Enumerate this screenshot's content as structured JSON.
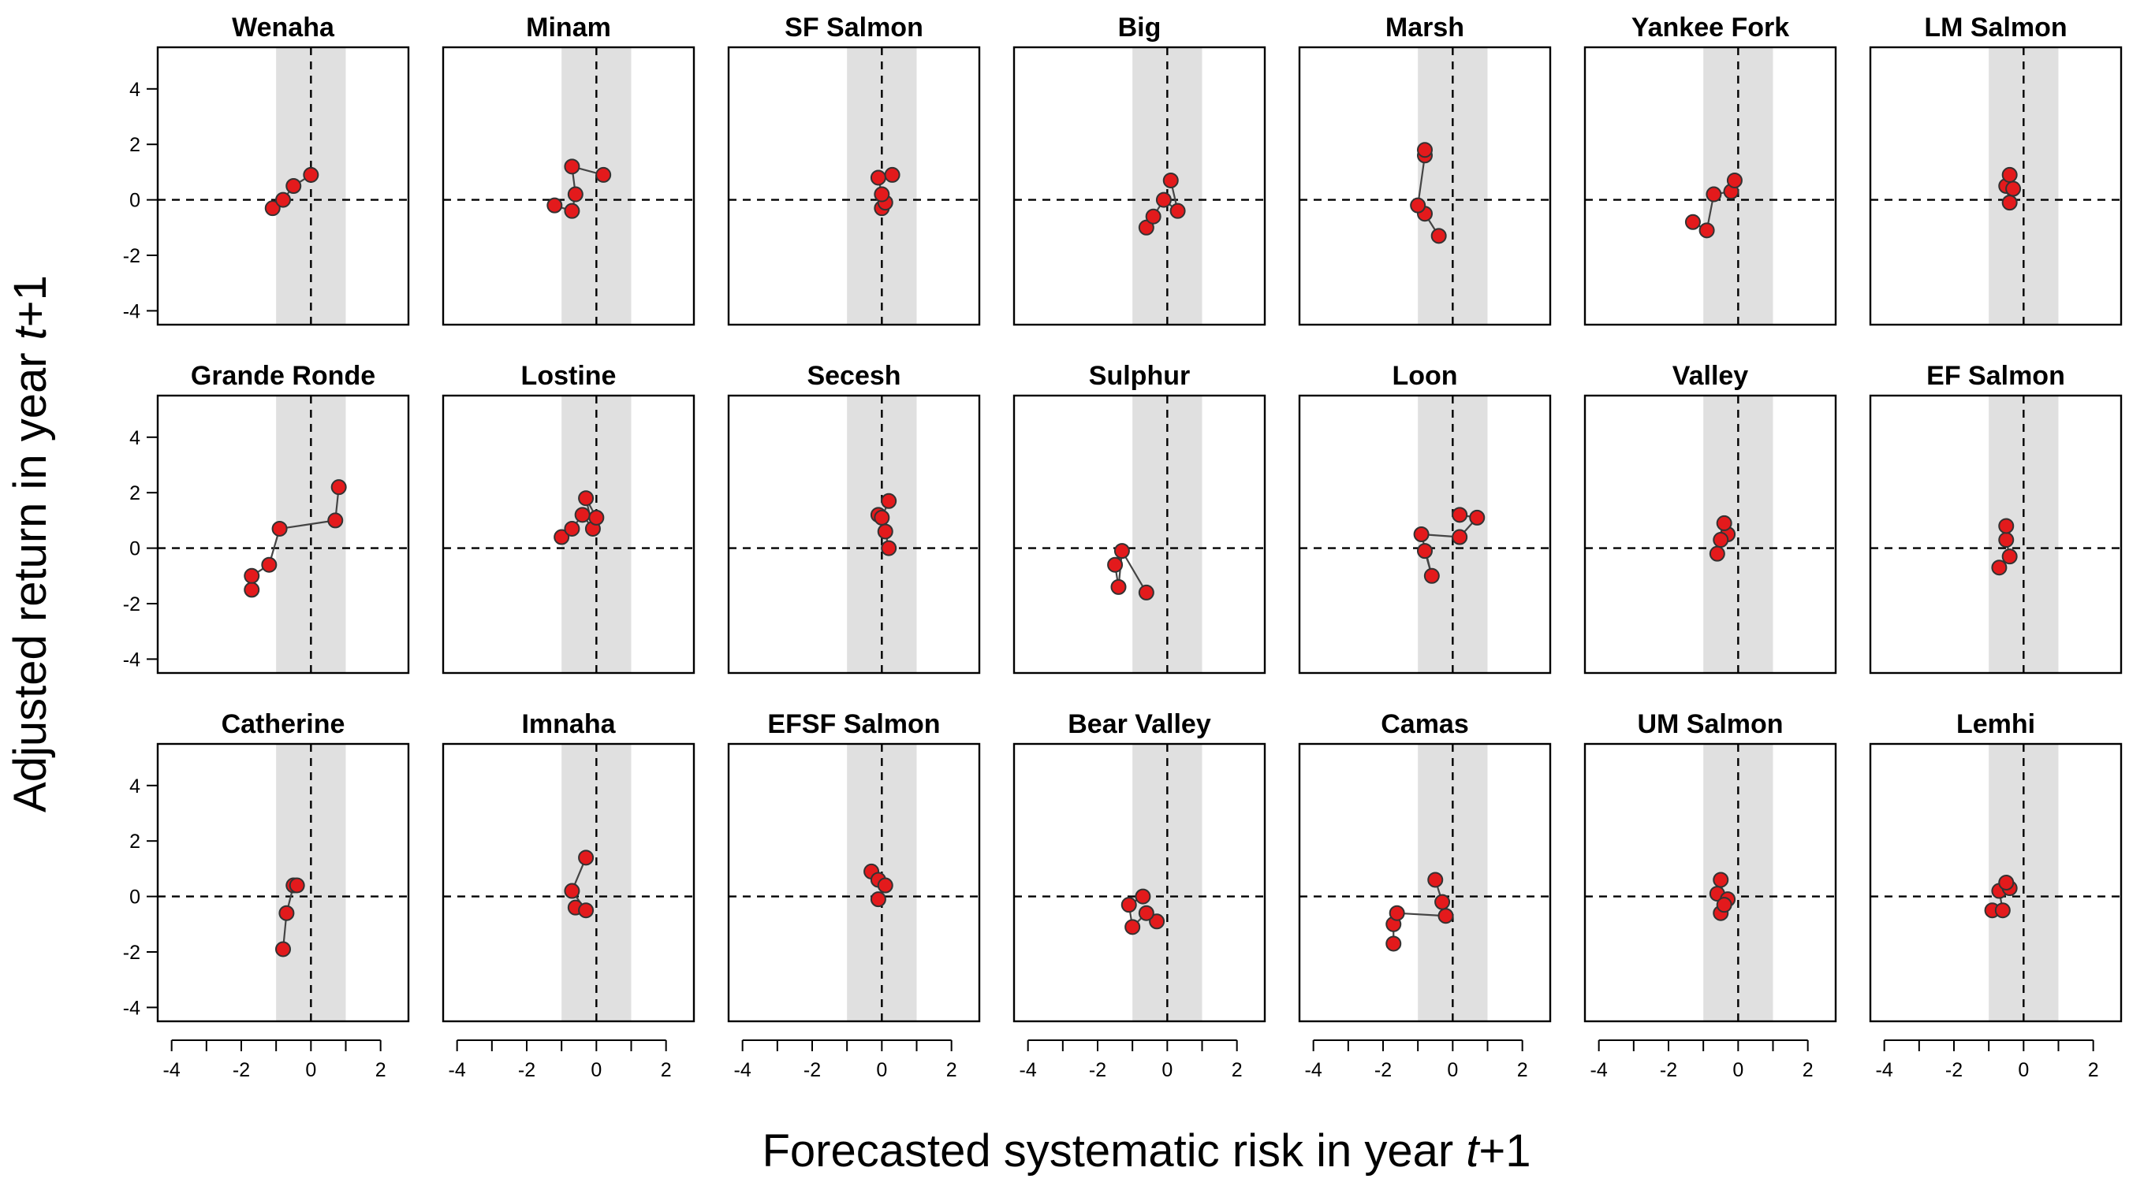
{
  "chart_data": {
    "type": "scatter",
    "xlabel": "Forecasted systematic risk in year t+1",
    "ylabel": "Adjusted return in year t+1",
    "xlim": [
      -4,
      2
    ],
    "ylim": [
      -4,
      4
    ],
    "x_ticks": [
      -4,
      -2,
      0,
      2
    ],
    "y_ticks": [
      -4,
      -2,
      0,
      2,
      4
    ],
    "shaded_x_band": [
      -1,
      1
    ],
    "reference_lines": {
      "x": 0,
      "y": 0
    },
    "grid": false,
    "point_color": "#e31a1c",
    "band_color": "#e0e0e0",
    "arrow_color": "#444444",
    "panels": [
      {
        "name": "Wenaha",
        "x": [
          -1.1,
          -0.8,
          -0.5,
          0.0
        ],
        "y": [
          -0.3,
          0.0,
          0.5,
          0.9
        ]
      },
      {
        "name": "Minam",
        "x": [
          -1.2,
          -0.7,
          -0.6,
          -0.7,
          0.2
        ],
        "y": [
          -0.2,
          -0.4,
          0.2,
          1.2,
          0.9
        ]
      },
      {
        "name": "SF Salmon",
        "x": [
          0.0,
          0.1,
          0.0,
          -0.1,
          0.3
        ],
        "y": [
          -0.3,
          -0.1,
          0.2,
          0.8,
          0.9
        ]
      },
      {
        "name": "Big",
        "x": [
          -0.6,
          -0.4,
          -0.1,
          0.3,
          0.1
        ],
        "y": [
          -1.0,
          -0.6,
          0.0,
          -0.4,
          0.7
        ]
      },
      {
        "name": "Marsh",
        "x": [
          -0.4,
          -0.8,
          -1.0,
          -0.8,
          -0.8
        ],
        "y": [
          -1.3,
          -0.5,
          -0.2,
          1.6,
          1.8
        ]
      },
      {
        "name": "Yankee Fork",
        "x": [
          -1.3,
          -0.9,
          -0.7,
          -0.2,
          -0.1
        ],
        "y": [
          -0.8,
          -1.1,
          0.2,
          0.3,
          0.7
        ]
      },
      {
        "name": "LM Salmon",
        "x": [
          -0.4,
          -0.5,
          -0.3,
          -0.4
        ],
        "y": [
          -0.1,
          0.5,
          0.4,
          0.9
        ]
      },
      {
        "name": "Grande Ronde",
        "x": [
          -1.7,
          -1.7,
          -1.2,
          -0.9,
          0.7,
          0.8
        ],
        "y": [
          -1.5,
          -1.0,
          -0.6,
          0.7,
          1.0,
          2.2
        ]
      },
      {
        "name": "Lostine",
        "x": [
          -1.0,
          -0.7,
          -0.4,
          -0.1,
          -0.3,
          0.0
        ],
        "y": [
          0.4,
          0.7,
          1.2,
          0.7,
          1.8,
          1.1
        ]
      },
      {
        "name": "Secesh",
        "x": [
          0.2,
          0.1,
          -0.1,
          0.0,
          0.2
        ],
        "y": [
          0.0,
          0.6,
          1.2,
          1.1,
          1.7
        ]
      },
      {
        "name": "Sulphur",
        "x": [
          -1.5,
          -1.4,
          -1.3,
          -0.6
        ],
        "y": [
          -0.6,
          -1.4,
          -0.1,
          -1.6
        ]
      },
      {
        "name": "Loon",
        "x": [
          -0.8,
          -0.6,
          -0.9,
          0.2,
          0.7,
          0.2
        ],
        "y": [
          -0.1,
          -1.0,
          0.5,
          0.4,
          1.1,
          1.2
        ]
      },
      {
        "name": "Valley",
        "x": [
          -0.6,
          -0.3,
          -0.5,
          -0.4
        ],
        "y": [
          -0.2,
          0.5,
          0.3,
          0.9
        ]
      },
      {
        "name": "EF Salmon",
        "x": [
          -0.7,
          -0.4,
          -0.5,
          -0.5
        ],
        "y": [
          -0.7,
          -0.3,
          0.3,
          0.8
        ]
      },
      {
        "name": "Catherine",
        "x": [
          -0.8,
          -0.7,
          -0.5,
          -0.4
        ],
        "y": [
          -1.9,
          -0.6,
          0.4,
          0.4
        ]
      },
      {
        "name": "Imnaha",
        "x": [
          -0.6,
          -0.3,
          -0.7,
          -0.3
        ],
        "y": [
          -0.4,
          -0.5,
          0.2,
          1.4
        ]
      },
      {
        "name": "EFSF Salmon",
        "x": [
          -0.3,
          -0.1,
          0.1,
          -0.1
        ],
        "y": [
          0.9,
          0.6,
          0.4,
          -0.1
        ]
      },
      {
        "name": "Bear Valley",
        "x": [
          -0.3,
          -0.6,
          -1.0,
          -1.1,
          -0.7
        ],
        "y": [
          -0.9,
          -0.6,
          -1.1,
          -0.3,
          0.0
        ]
      },
      {
        "name": "Camas",
        "x": [
          -1.7,
          -1.7,
          -1.6,
          -0.2,
          -0.3,
          -0.5
        ],
        "y": [
          -1.7,
          -1.0,
          -0.6,
          -0.7,
          -0.2,
          0.6
        ]
      },
      {
        "name": "UM Salmon",
        "x": [
          -0.5,
          -0.6,
          -0.3,
          -0.4,
          -0.5
        ],
        "y": [
          -0.6,
          0.1,
          -0.1,
          -0.3,
          0.6
        ]
      },
      {
        "name": "Lemhi",
        "x": [
          -0.9,
          -0.6,
          -0.7,
          -0.4,
          -0.5
        ],
        "y": [
          -0.5,
          -0.5,
          0.2,
          0.3,
          0.5
        ]
      }
    ]
  }
}
